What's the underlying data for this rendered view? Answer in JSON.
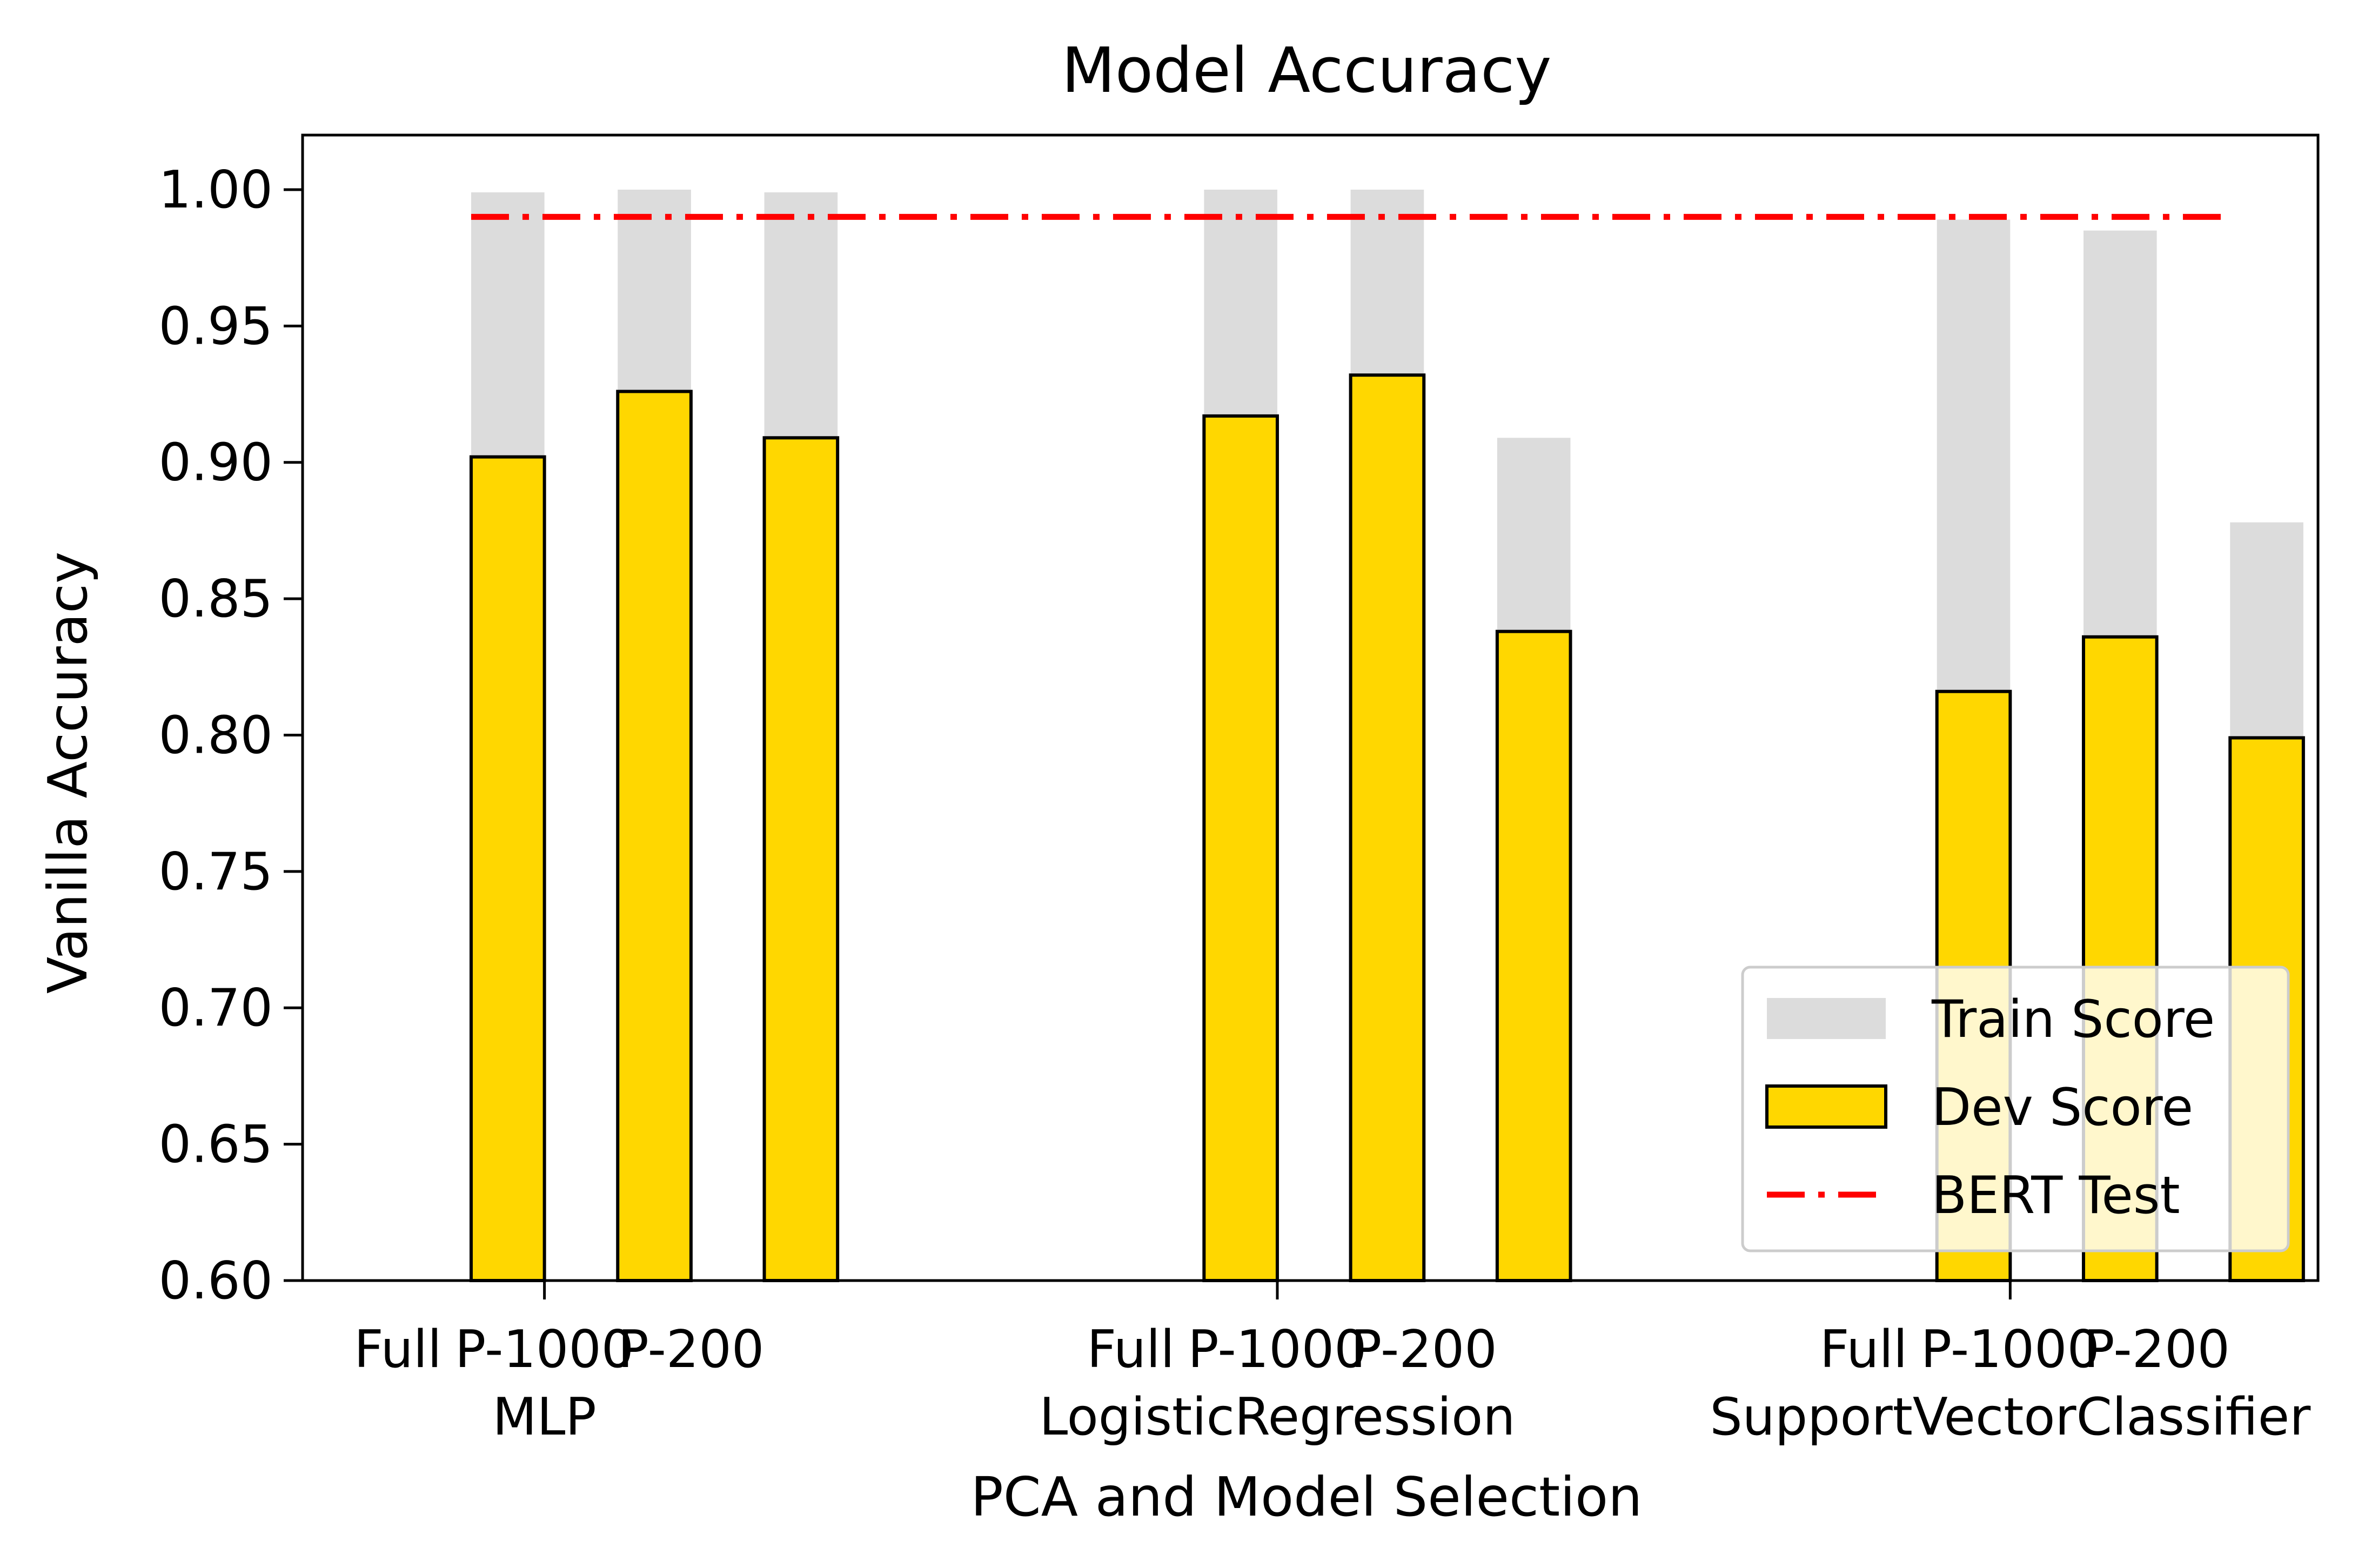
{
  "chart_data": {
    "type": "bar",
    "title": "Model Accuracy",
    "xlabel": "PCA and Model Selection",
    "ylabel": "Vanilla Accuracy",
    "ylim": [
      0.6,
      1.02
    ],
    "yticks": [
      "0.60",
      "0.65",
      "0.70",
      "0.75",
      "0.80",
      "0.85",
      "0.90",
      "0.95",
      "1.00"
    ],
    "groups": [
      {
        "name": "MLP",
        "labels": [
          "Full",
          "P-1000",
          "P-200"
        ],
        "train": [
          0.999,
          1.0,
          0.999
        ],
        "dev": [
          0.902,
          0.926,
          0.909
        ]
      },
      {
        "name": "LogisticRegression",
        "labels": [
          "Full",
          "P-1000",
          "P-200"
        ],
        "train": [
          1.0,
          1.0,
          0.909
        ],
        "dev": [
          0.917,
          0.932,
          0.838
        ]
      },
      {
        "name": "SupportVectorClassifier",
        "labels": [
          "Full",
          "P-1000",
          "P-200"
        ],
        "train": [
          0.989,
          0.985,
          0.878
        ],
        "dev": [
          0.816,
          0.836,
          0.799
        ]
      }
    ],
    "reference_line": {
      "name": "BERT Test",
      "value": 0.99
    },
    "series": [
      {
        "name": "Train Score",
        "color": "#dcdcdc"
      },
      {
        "name": "Dev Score",
        "color": "#ffd700",
        "edge": "#000000"
      },
      {
        "name": "BERT Test",
        "color": "#ff0000",
        "style": "dash-dot"
      }
    ],
    "grid": false,
    "legend_position": "lower-right"
  }
}
